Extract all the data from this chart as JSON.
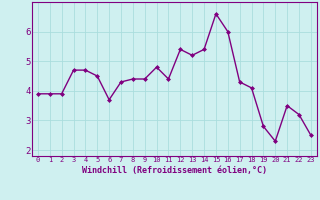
{
  "x": [
    0,
    1,
    2,
    3,
    4,
    5,
    6,
    7,
    8,
    9,
    10,
    11,
    12,
    13,
    14,
    15,
    16,
    17,
    18,
    19,
    20,
    21,
    22,
    23
  ],
  "y": [
    3.9,
    3.9,
    3.9,
    4.7,
    4.7,
    4.5,
    3.7,
    4.3,
    4.4,
    4.4,
    4.8,
    4.4,
    5.4,
    5.2,
    5.4,
    6.6,
    6.0,
    4.3,
    4.1,
    2.8,
    2.3,
    3.5,
    3.2,
    2.5
  ],
  "line_color": "#800080",
  "marker": "D",
  "marker_size": 2.0,
  "bg_color": "#cff0f0",
  "grid_color": "#aadddd",
  "xlabel": "Windchill (Refroidissement éolien,°C)",
  "xlabel_color": "#800080",
  "tick_color": "#800080",
  "ylim": [
    1.8,
    7.0
  ],
  "xlim": [
    -0.5,
    23.5
  ],
  "yticks": [
    2,
    3,
    4,
    5,
    6
  ],
  "xticks": [
    0,
    1,
    2,
    3,
    4,
    5,
    6,
    7,
    8,
    9,
    10,
    11,
    12,
    13,
    14,
    15,
    16,
    17,
    18,
    19,
    20,
    21,
    22,
    23
  ],
  "xtick_labels": [
    "0",
    "1",
    "2",
    "3",
    "4",
    "5",
    "6",
    "7",
    "8",
    "9",
    "10",
    "11",
    "12",
    "13",
    "14",
    "15",
    "16",
    "17",
    "18",
    "19",
    "20",
    "21",
    "22",
    "23"
  ],
  "linewidth": 1.0,
  "spine_color": "#800080",
  "xlabel_fontsize": 6.0,
  "xtick_fontsize": 5.0,
  "ytick_fontsize": 6.5
}
